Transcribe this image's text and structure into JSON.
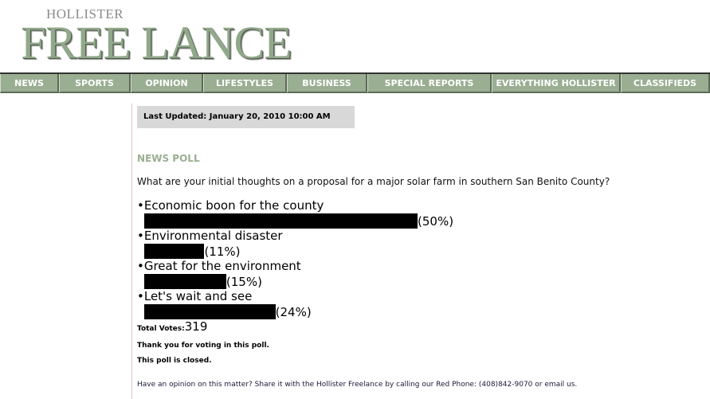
{
  "logo": {
    "small": "HOLLISTER",
    "big": "FREE LANCE",
    "color": "#91a88a"
  },
  "nav": [
    {
      "label": "NEWS",
      "w": 74
    },
    {
      "label": "SPORTS",
      "w": 90
    },
    {
      "label": "OPINION",
      "w": 91
    },
    {
      "label": "LIFESTYLES",
      "w": 105
    },
    {
      "label": "BUSINESS",
      "w": 101
    },
    {
      "label": "SPECIAL REPORTS",
      "w": 156
    },
    {
      "label": "EVERYTHING HOLLISTER",
      "w": 162
    },
    {
      "label": "CLASSIFIEDS",
      "w": 112
    }
  ],
  "updated": "Last Updated: January 20, 2010 10:00 AM",
  "poll": {
    "heading": "NEWS POLL",
    "question": "What are your initial thoughts on a proposal for a major solar farm in southern San Benito County?",
    "answers": [
      {
        "label": "•Economic boon for the county",
        "percent": 50,
        "pct_label": "(50%)"
      },
      {
        "label": "•Environmental disaster",
        "percent": 11,
        "pct_label": "(11%)"
      },
      {
        "label": "•Great for the environment",
        "percent": 15,
        "pct_label": "(15%)"
      },
      {
        "label": "•Let's wait and see",
        "percent": 24,
        "pct_label": "(24%)"
      }
    ],
    "total_label": "Total Votes:",
    "total": "319",
    "thanks": "Thank you for voting in this poll.",
    "closed": "This poll is closed."
  },
  "footer": "Have an opinion on this matter? Share it with the Hollister Freelance by calling our Red Phone: (408)842-9070 or email us."
}
